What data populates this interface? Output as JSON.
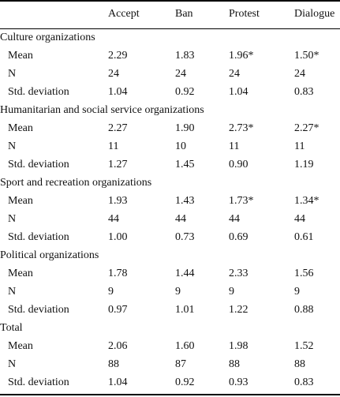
{
  "table": {
    "headers": [
      "",
      "Accept",
      "Ban",
      "Protest",
      "Dialogue"
    ],
    "groups": [
      {
        "name": "Culture organizations",
        "rows": [
          {
            "label": "Mean",
            "values": [
              "2.29",
              "1.83",
              "1.96*",
              "1.50*"
            ]
          },
          {
            "label": "N",
            "values": [
              "24",
              "24",
              "24",
              "24"
            ]
          },
          {
            "label": "Std. deviation",
            "values": [
              "1.04",
              "0.92",
              "1.04",
              "0.83"
            ]
          }
        ]
      },
      {
        "name": "Humanitarian and social service organizations",
        "rows": [
          {
            "label": "Mean",
            "values": [
              "2.27",
              "1.90",
              "2.73*",
              "2.27*"
            ]
          },
          {
            "label": "N",
            "values": [
              "11",
              "10",
              "11",
              "11"
            ]
          },
          {
            "label": "Std. deviation",
            "values": [
              "1.27",
              "1.45",
              "0.90",
              "1.19"
            ]
          }
        ]
      },
      {
        "name": "Sport and recreation organizations",
        "rows": [
          {
            "label": "Mean",
            "values": [
              "1.93",
              "1.43",
              "1.73*",
              "1.34*"
            ]
          },
          {
            "label": "N",
            "values": [
              "44",
              "44",
              "44",
              "44"
            ]
          },
          {
            "label": "Std. deviation",
            "values": [
              "1.00",
              "0.73",
              "0.69",
              "0.61"
            ]
          }
        ]
      },
      {
        "name": "Political organizations",
        "rows": [
          {
            "label": "Mean",
            "values": [
              "1.78",
              "1.44",
              "2.33",
              "1.56"
            ]
          },
          {
            "label": "N",
            "values": [
              "9",
              "9",
              "9",
              "9"
            ]
          },
          {
            "label": "Std. deviation",
            "values": [
              "0.97",
              "1.01",
              "1.22",
              "0.88"
            ]
          }
        ]
      },
      {
        "name": "Total",
        "rows": [
          {
            "label": "Mean",
            "values": [
              "2.06",
              "1.60",
              "1.98",
              "1.52"
            ]
          },
          {
            "label": "N",
            "values": [
              "88",
              "87",
              "88",
              "88"
            ]
          },
          {
            "label": "Std. deviation",
            "values": [
              "1.04",
              "0.92",
              "0.93",
              "0.83"
            ]
          }
        ]
      }
    ]
  }
}
